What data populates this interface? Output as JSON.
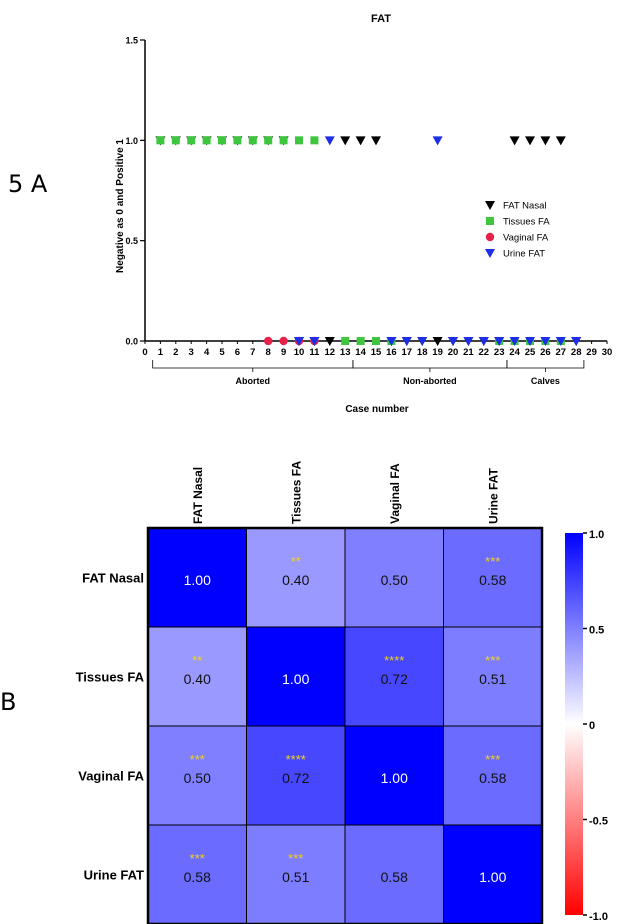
{
  "panel_labels": {
    "a": "5 A",
    "b": "B"
  },
  "chart_data": [
    {
      "type": "scatter",
      "title": "FAT",
      "xlabel": "Case number",
      "ylabel": "Negative as 0 and Positive 1",
      "xlim": [
        0,
        30
      ],
      "ylim": [
        0,
        1.5
      ],
      "x_ticks": [
        0,
        1,
        2,
        3,
        4,
        5,
        6,
        7,
        8,
        9,
        10,
        11,
        12,
        13,
        14,
        15,
        16,
        17,
        18,
        19,
        20,
        21,
        22,
        23,
        24,
        25,
        26,
        27,
        28,
        29,
        30
      ],
      "y_ticks": [
        {
          "value": 0,
          "label": "0.0"
        },
        {
          "value": 0.5,
          "label": "0.5"
        },
        {
          "value": 1,
          "label": "1.0"
        },
        {
          "value": 1.5,
          "label": "1.5"
        }
      ],
      "groups": [
        {
          "label": "Aborted",
          "from": 1,
          "to": 13
        },
        {
          "label": "Non-aborted",
          "from": 14,
          "to": 23
        },
        {
          "label": "Calves",
          "from": 24,
          "to": 28
        }
      ],
      "legend_position": "right",
      "series": [
        {
          "name": "FAT Nasal",
          "marker": "triangle-down",
          "color": "#000000",
          "x": [
            1,
            2,
            3,
            4,
            5,
            6,
            7,
            8,
            9,
            10,
            11,
            12,
            13,
            14,
            15,
            16,
            17,
            18,
            19,
            20,
            21,
            22,
            23,
            24,
            25,
            26,
            27,
            28
          ],
          "y": [
            1,
            1,
            1,
            1,
            1,
            1,
            1,
            1,
            1,
            0,
            0,
            0,
            1,
            1,
            1,
            0,
            0,
            0,
            0,
            0,
            0,
            0,
            0,
            1,
            1,
            1,
            1,
            0
          ]
        },
        {
          "name": "Tissues FA",
          "marker": "square",
          "color": "#3ec73e",
          "x": [
            1,
            2,
            3,
            4,
            5,
            6,
            7,
            8,
            9,
            10,
            11,
            13,
            14,
            15,
            16,
            23,
            24,
            25,
            26,
            27
          ],
          "y": [
            1,
            1,
            1,
            1,
            1,
            1,
            1,
            1,
            1,
            1,
            1,
            0,
            0,
            0,
            0,
            0,
            0,
            0,
            0,
            0
          ]
        },
        {
          "name": "Vaginal FA",
          "marker": "circle",
          "color": "#e8214a",
          "x": [
            8,
            9,
            10,
            11
          ],
          "y": [
            0,
            0,
            0,
            0
          ]
        },
        {
          "name": "Urine FAT",
          "marker": "triangle-down",
          "color": "#1c2fe6",
          "x": [
            10,
            11,
            12,
            16,
            17,
            18,
            19,
            20,
            21,
            22,
            23,
            24,
            25,
            26,
            27,
            28
          ],
          "y": [
            0,
            0,
            1,
            0,
            0,
            0,
            1,
            0,
            0,
            0,
            0,
            0,
            0,
            0,
            0,
            0
          ]
        }
      ]
    },
    {
      "type": "heatmap",
      "rows": [
        "FAT Nasal",
        "Tissues FA",
        "Vaginal FA",
        "Urine FAT"
      ],
      "columns": [
        "FAT Nasal",
        "Tissues FA",
        "Vaginal FA",
        "Urine FAT"
      ],
      "values": [
        [
          1.0,
          0.4,
          0.5,
          0.58
        ],
        [
          0.4,
          1.0,
          0.72,
          0.51
        ],
        [
          0.5,
          0.72,
          1.0,
          0.58
        ],
        [
          0.58,
          0.51,
          0.58,
          1.0
        ]
      ],
      "value_labels": [
        [
          "1.00",
          "0.40",
          "0.50",
          "0.58"
        ],
        [
          "0.40",
          "1.00",
          "0.72",
          "0.51"
        ],
        [
          "0.50",
          "0.72",
          "1.00",
          "0.58"
        ],
        [
          "0.58",
          "0.51",
          "0.58",
          "1.00"
        ]
      ],
      "significance": [
        [
          "",
          "**",
          "",
          "***"
        ],
        [
          "**",
          "",
          "****",
          "***"
        ],
        [
          "***",
          "****",
          "",
          "***"
        ],
        [
          "***",
          "***",
          "",
          ""
        ]
      ],
      "colorbar": {
        "min": -1.0,
        "max": 1.0,
        "ticks": [
          {
            "value": 1.0,
            "label": "1.0"
          },
          {
            "value": 0.5,
            "label": "0.5"
          },
          {
            "value": 0,
            "label": "0"
          },
          {
            "value": -0.5,
            "label": "-0.5"
          },
          {
            "value": -1.0,
            "label": "-1.0"
          }
        ]
      },
      "colors": {
        "high": "#0000ff",
        "mid": "#ffffff",
        "low": "#ff0000",
        "significance": "#f2d21f"
      }
    }
  ]
}
